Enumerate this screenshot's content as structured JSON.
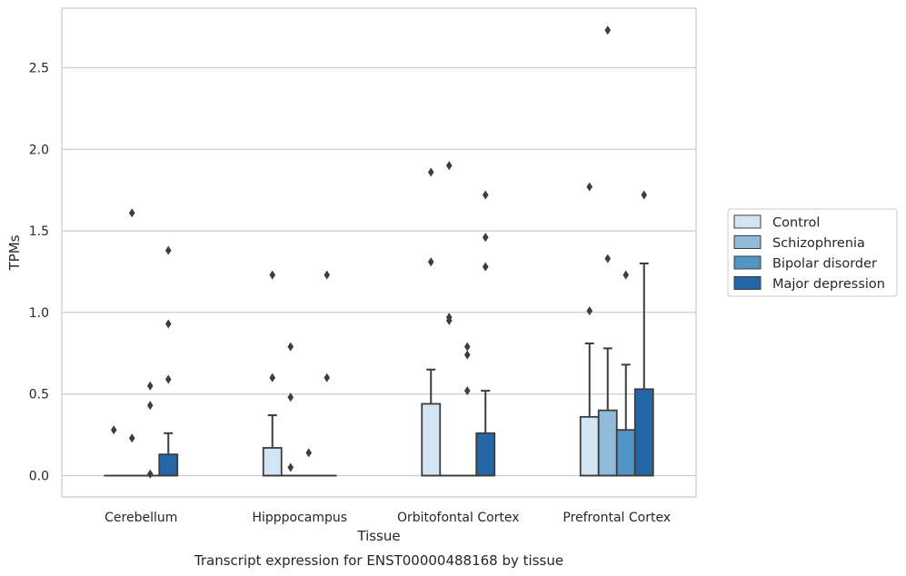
{
  "chart_data": {
    "type": "box",
    "xlabel": "Tissue",
    "ylabel": "TPMs",
    "caption": "Transcript expression for ENST00000488168 by tissue",
    "categories": [
      "Cerebellum",
      "Hipppocampus",
      "Orbitofontal Cortex",
      "Prefrontal Cortex"
    ],
    "ylim": [
      -0.13,
      2.87
    ],
    "yticks": [
      0.0,
      0.5,
      1.0,
      1.5,
      2.0,
      2.5
    ],
    "ytick_labels": [
      "0.0",
      "0.5",
      "1.0",
      "1.5",
      "2.0",
      "2.5"
    ],
    "grid": "horizontal",
    "legend_position": "right",
    "series": [
      {
        "name": "Control",
        "color": "#d3e4f3",
        "boxes": [
          {
            "q1": 0,
            "median": 0,
            "q3": 0,
            "whisker_low": 0,
            "whisker_high": 0,
            "outliers": [
              0.28
            ]
          },
          {
            "q1": 0,
            "median": 0,
            "q3": 0.17,
            "whisker_low": 0,
            "whisker_high": 0.37,
            "outliers": [
              0.6,
              1.23
            ]
          },
          {
            "q1": 0,
            "median": 0,
            "q3": 0.44,
            "whisker_low": 0,
            "whisker_high": 0.65,
            "outliers": [
              1.31,
              1.86
            ]
          },
          {
            "q1": 0,
            "median": 0,
            "q3": 0.36,
            "whisker_low": 0,
            "whisker_high": 0.81,
            "outliers": [
              1.01,
              1.77
            ]
          }
        ]
      },
      {
        "name": "Schizophrenia",
        "color": "#8fbbd9",
        "boxes": [
          {
            "q1": 0,
            "median": 0,
            "q3": 0,
            "whisker_low": 0,
            "whisker_high": 0,
            "outliers": [
              0.23,
              1.61
            ]
          },
          {
            "q1": 0,
            "median": 0,
            "q3": 0,
            "whisker_low": 0,
            "whisker_high": 0,
            "outliers": [
              0.05,
              0.48,
              0.79
            ]
          },
          {
            "q1": 0,
            "median": 0,
            "q3": 0,
            "whisker_low": 0,
            "whisker_high": 0,
            "outliers": [
              0.95,
              0.97,
              1.9
            ]
          },
          {
            "q1": 0,
            "median": 0,
            "q3": 0.4,
            "whisker_low": 0,
            "whisker_high": 0.78,
            "outliers": [
              1.33,
              2.73
            ]
          }
        ]
      },
      {
        "name": "Bipolar disorder",
        "color": "#5295c4",
        "boxes": [
          {
            "q1": 0,
            "median": 0,
            "q3": 0,
            "whisker_low": 0,
            "whisker_high": 0,
            "outliers": [
              0.01,
              0.43,
              0.55
            ]
          },
          {
            "q1": 0,
            "median": 0,
            "q3": 0,
            "whisker_low": 0,
            "whisker_high": 0,
            "outliers": [
              0.14
            ]
          },
          {
            "q1": 0,
            "median": 0,
            "q3": 0,
            "whisker_low": 0,
            "whisker_high": 0,
            "outliers": [
              0.52,
              0.74,
              0.79
            ]
          },
          {
            "q1": 0,
            "median": 0,
            "q3": 0.28,
            "whisker_low": 0,
            "whisker_high": 0.68,
            "outliers": [
              1.23
            ]
          }
        ]
      },
      {
        "name": "Major depression",
        "color": "#2467a6",
        "boxes": [
          {
            "q1": 0,
            "median": 0,
            "q3": 0.13,
            "whisker_low": 0,
            "whisker_high": 0.26,
            "outliers": [
              0.59,
              0.93,
              1.38
            ]
          },
          {
            "q1": 0,
            "median": 0,
            "q3": 0,
            "whisker_low": 0,
            "whisker_high": 0,
            "outliers": [
              0.6,
              1.23
            ]
          },
          {
            "q1": 0,
            "median": 0,
            "q3": 0.26,
            "whisker_low": 0,
            "whisker_high": 0.52,
            "outliers": [
              1.28,
              1.46,
              1.72
            ]
          },
          {
            "q1": 0,
            "median": 0,
            "q3": 0.53,
            "whisker_low": 0,
            "whisker_high": 1.3,
            "outliers": [
              1.72
            ]
          }
        ]
      }
    ]
  }
}
